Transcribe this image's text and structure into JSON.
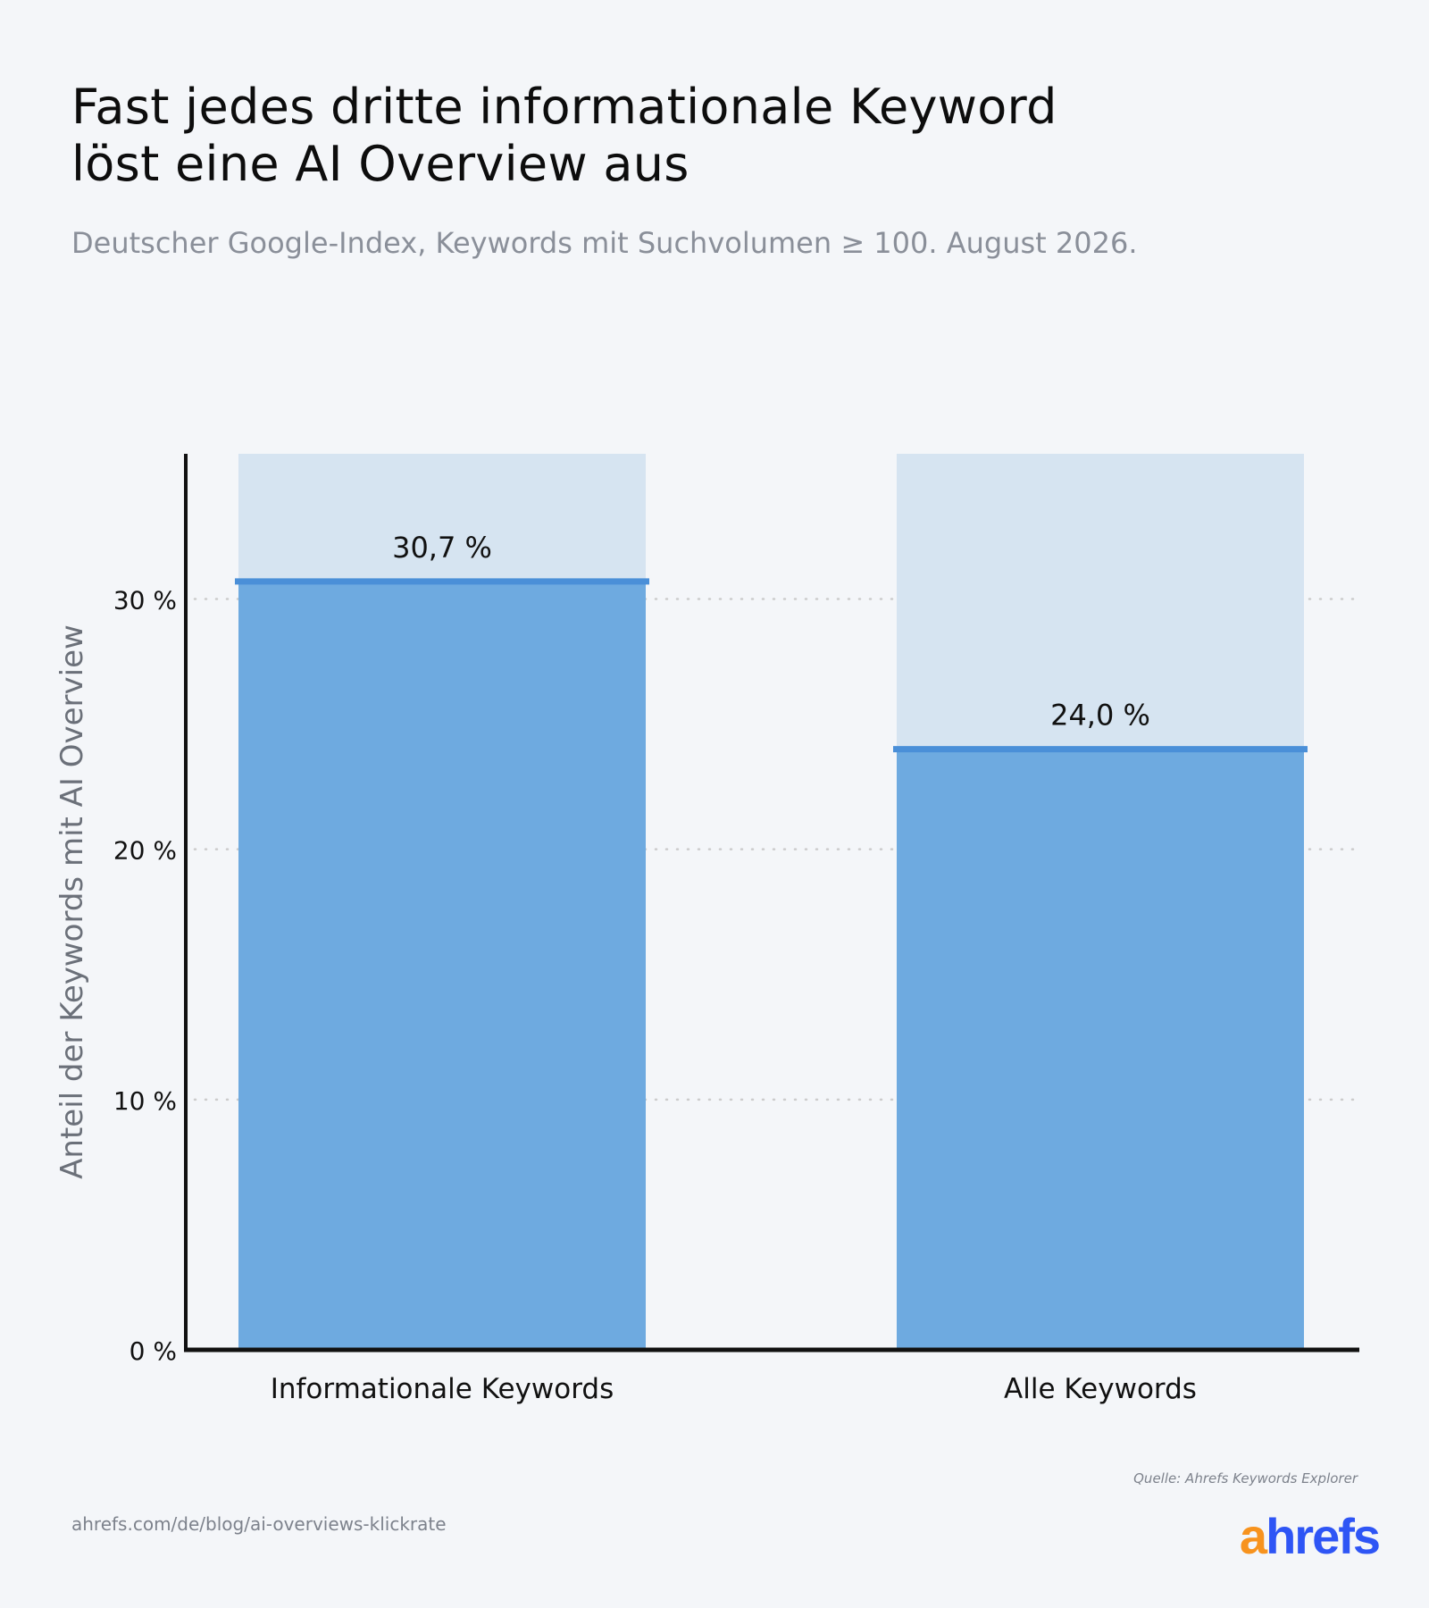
{
  "header": {
    "title_line1": "Fast jedes dritte informationale Keyword",
    "title_line2": "löst eine AI Overview aus",
    "subtitle": "Deutscher Google-Index, Keywords mit Suchvolumen ≥ 100. August 2026."
  },
  "footer": {
    "source": "Quelle: Ahrefs Keywords Explorer",
    "url": "ahrefs.com/de/blog/ai-overviews-klickrate",
    "logo_a": "a",
    "logo_rest": "hrefs"
  },
  "colors": {
    "bar_fill": "#6eaae0",
    "bar_background": "#d6e4f1",
    "bar_cap": "#4a8fd8",
    "axis": "#111111",
    "grid": "#cccccc",
    "ylabel": "#6b7079",
    "logo_a": "#f7931e",
    "logo_rest": "#2e55f5"
  },
  "chart_data": {
    "type": "bar",
    "categories": [
      "Informationale Keywords",
      "Alle Keywords"
    ],
    "values": [
      30.7,
      24.0
    ],
    "value_labels": [
      "30,7 %",
      "24,0 %"
    ],
    "ylabel": "Anteil der Keywords mit AI Overview",
    "xlabel": "",
    "ylim": [
      0,
      35.8
    ],
    "yticks": [
      0,
      10,
      20,
      30
    ],
    "ytick_labels": [
      "0 %",
      "10 %",
      "20 %",
      "30 %"
    ],
    "grid": true,
    "legend": "none"
  }
}
